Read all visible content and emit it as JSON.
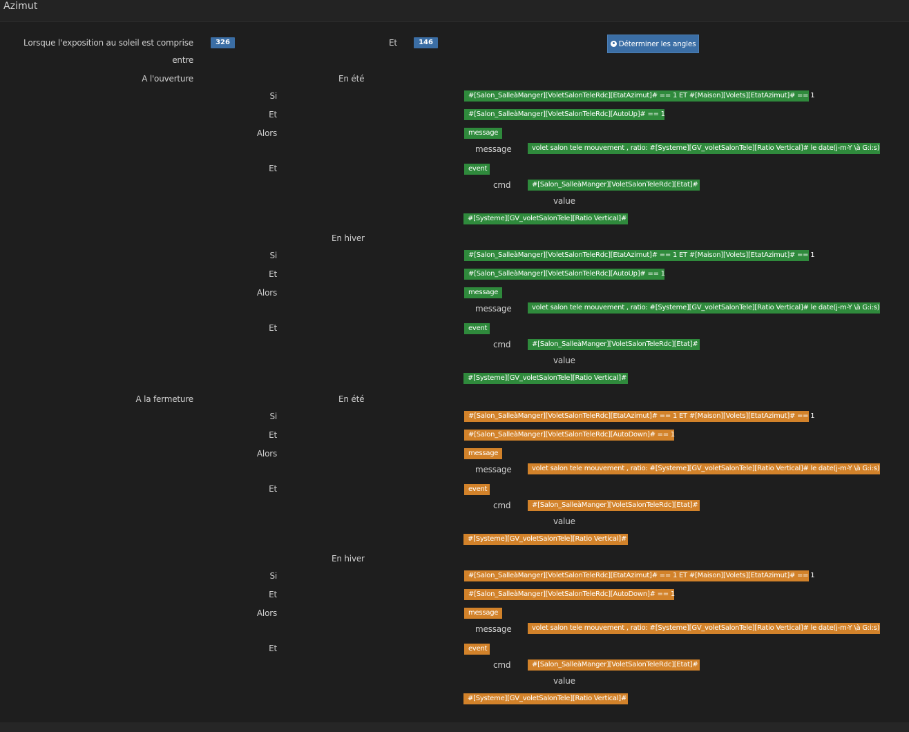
{
  "header": {
    "title": "Azimut"
  },
  "exposition": {
    "label": "Lorsque l'exposition au soleil est comprise",
    "label2": "entre",
    "value_from": "326",
    "and_label": "Et",
    "value_to": "146",
    "button_label": "Déterminer les angles"
  },
  "labels": {
    "opening": "A l'ouverture",
    "closing": "A la fermeture",
    "summer": "En été",
    "winter": "En hiver",
    "si": "Si",
    "et": "Et",
    "alors": "Alors",
    "message": "message",
    "cmd": "cmd",
    "value": "value"
  },
  "blocks": [
    {
      "condition1": "#[Salon_SalleàManger][VoletSalonTeleRdc][EtatAzimut]# == 1 ET #[Maison][Volets][EtatAzimut]# == 1",
      "condition2": "#[Salon_SalleàManger][VoletSalonTeleRdc][AutoUp]# == 1",
      "action1": "message",
      "message": "volet salon tele mouvement , ratio: #[Systeme][GV_voletSalonTele][Ratio Vertical]# le date(j-m-Y \\à G:i:s)",
      "action2": "event",
      "cmd": "#[Salon_SalleàManger][VoletSalonTeleRdc][Etat]#",
      "value": "#[Systeme][GV_voletSalonTele][Ratio Vertical]#"
    },
    {
      "condition1": "#[Salon_SalleàManger][VoletSalonTeleRdc][EtatAzimut]# == 1 ET #[Maison][Volets][EtatAzimut]# == 1",
      "condition2": "#[Salon_SalleàManger][VoletSalonTeleRdc][AutoUp]# == 1",
      "action1": "message",
      "message": "volet salon tele mouvement , ratio: #[Systeme][GV_voletSalonTele][Ratio Vertical]# le date(j-m-Y \\à G:i:s)",
      "action2": "event",
      "cmd": "#[Salon_SalleàManger][VoletSalonTeleRdc][Etat]#",
      "value": "#[Systeme][GV_voletSalonTele][Ratio Vertical]#"
    },
    {
      "condition1": "#[Salon_SalleàManger][VoletSalonTeleRdc][EtatAzimut]# == 1 ET #[Maison][Volets][EtatAzimut]# == 1",
      "condition2": "#[Salon_SalleàManger][VoletSalonTeleRdc][AutoDown]# == 1",
      "action1": "message",
      "message": "volet salon tele mouvement , ratio: #[Systeme][GV_voletSalonTele][Ratio Vertical]# le date(j-m-Y \\à G:i:s)",
      "action2": "event",
      "cmd": "#[Salon_SalleàManger][VoletSalonTeleRdc][Etat]#",
      "value": "#[Systeme][GV_voletSalonTele][Ratio Vertical]#"
    },
    {
      "condition1": "#[Salon_SalleàManger][VoletSalonTeleRdc][EtatAzimut]# == 1 ET #[Maison][Volets][EtatAzimut]# == 1",
      "condition2": "#[Salon_SalleàManger][VoletSalonTeleRdc][AutoDown]# == 1",
      "action1": "message",
      "message": "volet salon tele mouvement , ratio: #[Systeme][GV_voletSalonTele][Ratio Vertical]# le date(j-m-Y \\à G:i:s)",
      "action2": "event",
      "cmd": "#[Salon_SalleàManger][VoletSalonTeleRdc][Etat]#",
      "value": "#[Systeme][GV_voletSalonTele][Ratio Vertical]#"
    }
  ],
  "colors": {
    "opening": "#2f8a3c",
    "closing": "#d2822a",
    "badge": "#3b6ea5"
  }
}
